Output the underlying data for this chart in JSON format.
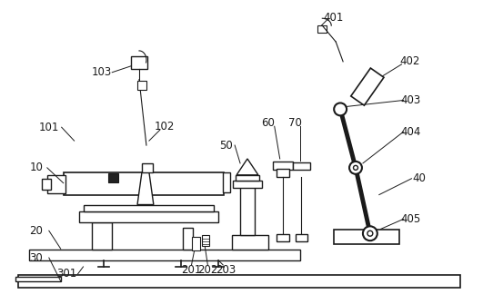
{
  "background_color": "#ffffff",
  "line_color": "#1a1a1a",
  "label_color": "#1a1a1a",
  "figsize": [
    5.42,
    3.35
  ],
  "dpi": 100
}
